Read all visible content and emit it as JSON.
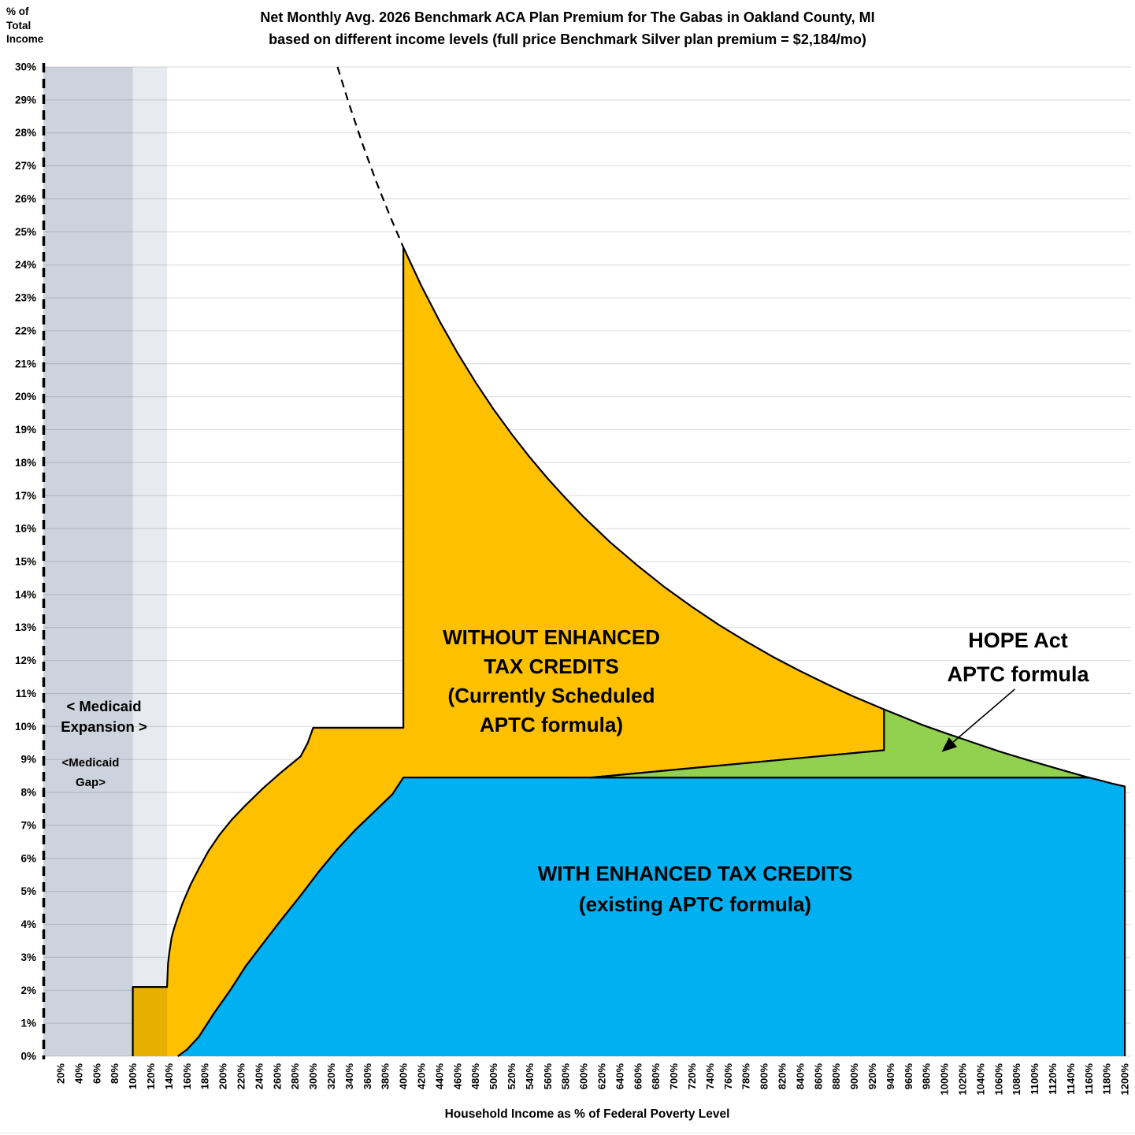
{
  "title": {
    "line1": "Net Monthly Avg. 2026 Benchmark ACA Plan Premium for The Gabas in Oakland County, MI",
    "line2": "based on different income levels (full price Benchmark Silver plan premium = $2,184/mo)"
  },
  "y_axis": {
    "label_l1": "% of",
    "label_l2": "Total",
    "label_l3": "Income",
    "min": 0,
    "max": 30,
    "step": 1,
    "tick_labels": [
      "0%",
      "1%",
      "2%",
      "3%",
      "4%",
      "5%",
      "6%",
      "7%",
      "8%",
      "9%",
      "10%",
      "11%",
      "12%",
      "13%",
      "14%",
      "15%",
      "16%",
      "17%",
      "18%",
      "19%",
      "20%",
      "21%",
      "22%",
      "23%",
      "24%",
      "25%",
      "26%",
      "27%",
      "28%",
      "29%",
      "30%"
    ]
  },
  "x_axis": {
    "title": "Household Income as % of Federal Poverty Level",
    "min": 20,
    "max": 1200,
    "step": 20,
    "tick_labels": [
      "20%",
      "40%",
      "60%",
      "80%",
      "100%",
      "120%",
      "140%",
      "160%",
      "180%",
      "200%",
      "220%",
      "240%",
      "260%",
      "280%",
      "300%",
      "320%",
      "340%",
      "360%",
      "380%",
      "400%",
      "420%",
      "440%",
      "460%",
      "480%",
      "500%",
      "520%",
      "540%",
      "560%",
      "580%",
      "600%",
      "620%",
      "640%",
      "660%",
      "680%",
      "700%",
      "720%",
      "740%",
      "760%",
      "780%",
      "800%",
      "820%",
      "840%",
      "860%",
      "880%",
      "900%",
      "920%",
      "940%",
      "960%",
      "980%",
      "1000%",
      "1020%",
      "1040%",
      "1060%",
      "1080%",
      "1100%",
      "1120%",
      "1140%",
      "1160%",
      "1180%",
      "1200%"
    ]
  },
  "annotations": {
    "medicaid_exp_l1": "< Medicaid",
    "medicaid_exp_l2": "Expansion >",
    "medicaid_gap_l1": "<Medicaid",
    "medicaid_gap_l2": "Gap>",
    "without_l1": "WITHOUT ENHANCED",
    "without_l2": "TAX CREDITS",
    "without_l3": "(Currently Scheduled",
    "without_l4": "APTC formula)",
    "with_l1": "WITH ENHANCED TAX CREDITS",
    "with_l2": "(existing APTC formula)",
    "hope_l1": "HOPE Act",
    "hope_l2": "APTC formula"
  },
  "chart_data": {
    "type": "area",
    "title": "Net Monthly Avg. 2026 Benchmark ACA Plan Premium for The Gabas in Oakland County, MI based on different income levels (full price Benchmark Silver plan premium = $2,184/mo)",
    "xlabel": "Household Income as % of Federal Poverty Level",
    "ylabel": "% of Total Income",
    "xlim": [
      20,
      1200
    ],
    "ylim": [
      0,
      30
    ],
    "grid": "horizontal",
    "full_price_benchmark_premium": "$2,184/mo",
    "bands": [
      {
        "name": "medicaid-expansion-band",
        "fpl_from": 0,
        "fpl_to": 100,
        "color": "#CDD3DD"
      },
      {
        "name": "medicaid-gap-band",
        "fpl_from": 100,
        "fpl_to": 138,
        "color": "#E7EAEF"
      }
    ],
    "regions": [
      {
        "name": "without-enhanced-tax-credits-area",
        "label": "WITHOUT ENHANCED TAX CREDITS (Currently Scheduled APTC formula)",
        "color": "#FFC000",
        "outline": "open",
        "points": [
          [
            100,
            0
          ],
          [
            100,
            2.1
          ],
          [
            138,
            2.1
          ],
          [
            139,
            2.8
          ],
          [
            140.5,
            3.15
          ],
          [
            143,
            3.6
          ],
          [
            146,
            3.9
          ],
          [
            149,
            4.15
          ],
          [
            155,
            4.63
          ],
          [
            164,
            5.2
          ],
          [
            173,
            5.68
          ],
          [
            184,
            6.23
          ],
          [
            196,
            6.71
          ],
          [
            210,
            7.18
          ],
          [
            225,
            7.61
          ],
          [
            245,
            8.14
          ],
          [
            265,
            8.62
          ],
          [
            286,
            9.09
          ],
          [
            294,
            9.5
          ],
          [
            300,
            9.96
          ],
          [
            400,
            9.96
          ],
          [
            400,
            24.53
          ],
          [
            420,
            23.36
          ],
          [
            440,
            22.3
          ],
          [
            460,
            21.33
          ],
          [
            480,
            20.44
          ],
          [
            500,
            19.62
          ],
          [
            520,
            18.87
          ],
          [
            540,
            18.17
          ],
          [
            560,
            17.52
          ],
          [
            580,
            16.92
          ],
          [
            600,
            16.35
          ],
          [
            630,
            15.57
          ],
          [
            660,
            14.87
          ],
          [
            690,
            14.22
          ],
          [
            720,
            13.63
          ],
          [
            750,
            13.08
          ],
          [
            780,
            12.58
          ],
          [
            810,
            12.11
          ],
          [
            840,
            11.68
          ],
          [
            870,
            11.28
          ],
          [
            900,
            10.9
          ],
          [
            933,
            10.52
          ],
          [
            933,
            9.28
          ],
          [
            608,
            8.45
          ],
          [
            400,
            8.45
          ],
          [
            388,
            7.95
          ],
          [
            368,
            7.42
          ],
          [
            347,
            6.87
          ],
          [
            327,
            6.28
          ],
          [
            306,
            5.59
          ],
          [
            286,
            4.87
          ],
          [
            265,
            4.15
          ],
          [
            245,
            3.44
          ],
          [
            225,
            2.72
          ],
          [
            208,
            2.0
          ],
          [
            190,
            1.3
          ],
          [
            173,
            0.58
          ],
          [
            160,
            0.2
          ],
          [
            150,
            0
          ]
        ]
      },
      {
        "name": "with-enhanced-tax-credits-area",
        "label": "WITH ENHANCED TAX CREDITS (existing APTC formula)",
        "color": "#00B0F0",
        "outline": "open",
        "points": [
          [
            150,
            0
          ],
          [
            160,
            0.2
          ],
          [
            173,
            0.58
          ],
          [
            190,
            1.3
          ],
          [
            208,
            2.0
          ],
          [
            225,
            2.72
          ],
          [
            245,
            3.44
          ],
          [
            265,
            4.15
          ],
          [
            286,
            4.87
          ],
          [
            306,
            5.59
          ],
          [
            327,
            6.28
          ],
          [
            347,
            6.87
          ],
          [
            368,
            7.42
          ],
          [
            388,
            7.95
          ],
          [
            400,
            8.45
          ],
          [
            1160,
            8.45
          ],
          [
            1172,
            8.37
          ],
          [
            1186,
            8.27
          ],
          [
            1200,
            8.18
          ],
          [
            1200,
            0
          ]
        ]
      },
      {
        "name": "hope-act-aptc-area",
        "label": "HOPE Act APTC formula",
        "color": "#92D050",
        "outline": "closed",
        "points": [
          [
            608,
            8.45
          ],
          [
            933,
            9.28
          ],
          [
            933,
            10.52
          ],
          [
            952,
            10.31
          ],
          [
            975,
            10.05
          ],
          [
            1000,
            9.81
          ],
          [
            1030,
            9.53
          ],
          [
            1060,
            9.25
          ],
          [
            1090,
            9.0
          ],
          [
            1120,
            8.76
          ],
          [
            1142,
            8.59
          ],
          [
            1160,
            8.45
          ]
        ]
      }
    ],
    "dashed_line": {
      "name": "full-price-premium-dashed-continuation",
      "points": [
        [
          327,
          30
        ],
        [
          340,
          28.86
        ],
        [
          355,
          27.64
        ],
        [
          370,
          26.52
        ],
        [
          385,
          25.49
        ],
        [
          400,
          24.53
        ]
      ]
    },
    "arrow": {
      "from_fpl": 1078,
      "from_pct": 11.13,
      "to_fpl": 1000,
      "to_pct": 9.3
    },
    "colors": {
      "without_area": "#FFC000",
      "with_area": "#00B0F0",
      "hope_area": "#92D050",
      "medicaid_expansion_band": "#CDD3DD",
      "medicaid_gap_band": "#E7EAEF",
      "gridline": "#D9D9D9",
      "outline": "#000000"
    }
  }
}
